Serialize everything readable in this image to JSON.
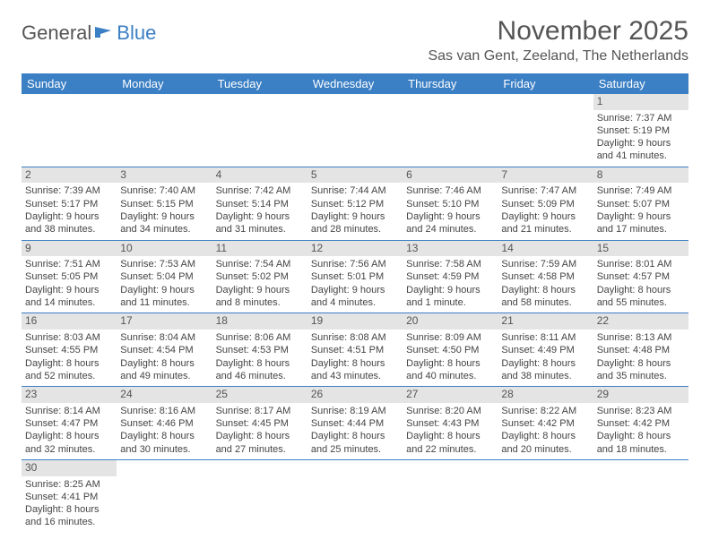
{
  "logo": {
    "text1": "General",
    "text2": "Blue"
  },
  "title": "November 2025",
  "location": "Sas van Gent, Zeeland, The Netherlands",
  "day_headers": [
    "Sunday",
    "Monday",
    "Tuesday",
    "Wednesday",
    "Thursday",
    "Friday",
    "Saturday"
  ],
  "colors": {
    "header_bg": "#3b7fc4",
    "header_text": "#ffffff",
    "date_bar_bg": "#e4e4e4",
    "text": "#444444",
    "row_border": "#3b7fc4"
  },
  "fonts": {
    "title_size_pt": 22,
    "location_size_pt": 12,
    "day_header_size_pt": 10,
    "cell_size_pt": 8
  },
  "weeks": [
    [
      {
        "date": "",
        "lines": []
      },
      {
        "date": "",
        "lines": []
      },
      {
        "date": "",
        "lines": []
      },
      {
        "date": "",
        "lines": []
      },
      {
        "date": "",
        "lines": []
      },
      {
        "date": "",
        "lines": []
      },
      {
        "date": "1",
        "lines": [
          "Sunrise: 7:37 AM",
          "Sunset: 5:19 PM",
          "Daylight: 9 hours",
          "and 41 minutes."
        ]
      }
    ],
    [
      {
        "date": "2",
        "lines": [
          "Sunrise: 7:39 AM",
          "Sunset: 5:17 PM",
          "Daylight: 9 hours",
          "and 38 minutes."
        ]
      },
      {
        "date": "3",
        "lines": [
          "Sunrise: 7:40 AM",
          "Sunset: 5:15 PM",
          "Daylight: 9 hours",
          "and 34 minutes."
        ]
      },
      {
        "date": "4",
        "lines": [
          "Sunrise: 7:42 AM",
          "Sunset: 5:14 PM",
          "Daylight: 9 hours",
          "and 31 minutes."
        ]
      },
      {
        "date": "5",
        "lines": [
          "Sunrise: 7:44 AM",
          "Sunset: 5:12 PM",
          "Daylight: 9 hours",
          "and 28 minutes."
        ]
      },
      {
        "date": "6",
        "lines": [
          "Sunrise: 7:46 AM",
          "Sunset: 5:10 PM",
          "Daylight: 9 hours",
          "and 24 minutes."
        ]
      },
      {
        "date": "7",
        "lines": [
          "Sunrise: 7:47 AM",
          "Sunset: 5:09 PM",
          "Daylight: 9 hours",
          "and 21 minutes."
        ]
      },
      {
        "date": "8",
        "lines": [
          "Sunrise: 7:49 AM",
          "Sunset: 5:07 PM",
          "Daylight: 9 hours",
          "and 17 minutes."
        ]
      }
    ],
    [
      {
        "date": "9",
        "lines": [
          "Sunrise: 7:51 AM",
          "Sunset: 5:05 PM",
          "Daylight: 9 hours",
          "and 14 minutes."
        ]
      },
      {
        "date": "10",
        "lines": [
          "Sunrise: 7:53 AM",
          "Sunset: 5:04 PM",
          "Daylight: 9 hours",
          "and 11 minutes."
        ]
      },
      {
        "date": "11",
        "lines": [
          "Sunrise: 7:54 AM",
          "Sunset: 5:02 PM",
          "Daylight: 9 hours",
          "and 8 minutes."
        ]
      },
      {
        "date": "12",
        "lines": [
          "Sunrise: 7:56 AM",
          "Sunset: 5:01 PM",
          "Daylight: 9 hours",
          "and 4 minutes."
        ]
      },
      {
        "date": "13",
        "lines": [
          "Sunrise: 7:58 AM",
          "Sunset: 4:59 PM",
          "Daylight: 9 hours",
          "and 1 minute."
        ]
      },
      {
        "date": "14",
        "lines": [
          "Sunrise: 7:59 AM",
          "Sunset: 4:58 PM",
          "Daylight: 8 hours",
          "and 58 minutes."
        ]
      },
      {
        "date": "15",
        "lines": [
          "Sunrise: 8:01 AM",
          "Sunset: 4:57 PM",
          "Daylight: 8 hours",
          "and 55 minutes."
        ]
      }
    ],
    [
      {
        "date": "16",
        "lines": [
          "Sunrise: 8:03 AM",
          "Sunset: 4:55 PM",
          "Daylight: 8 hours",
          "and 52 minutes."
        ]
      },
      {
        "date": "17",
        "lines": [
          "Sunrise: 8:04 AM",
          "Sunset: 4:54 PM",
          "Daylight: 8 hours",
          "and 49 minutes."
        ]
      },
      {
        "date": "18",
        "lines": [
          "Sunrise: 8:06 AM",
          "Sunset: 4:53 PM",
          "Daylight: 8 hours",
          "and 46 minutes."
        ]
      },
      {
        "date": "19",
        "lines": [
          "Sunrise: 8:08 AM",
          "Sunset: 4:51 PM",
          "Daylight: 8 hours",
          "and 43 minutes."
        ]
      },
      {
        "date": "20",
        "lines": [
          "Sunrise: 8:09 AM",
          "Sunset: 4:50 PM",
          "Daylight: 8 hours",
          "and 40 minutes."
        ]
      },
      {
        "date": "21",
        "lines": [
          "Sunrise: 8:11 AM",
          "Sunset: 4:49 PM",
          "Daylight: 8 hours",
          "and 38 minutes."
        ]
      },
      {
        "date": "22",
        "lines": [
          "Sunrise: 8:13 AM",
          "Sunset: 4:48 PM",
          "Daylight: 8 hours",
          "and 35 minutes."
        ]
      }
    ],
    [
      {
        "date": "23",
        "lines": [
          "Sunrise: 8:14 AM",
          "Sunset: 4:47 PM",
          "Daylight: 8 hours",
          "and 32 minutes."
        ]
      },
      {
        "date": "24",
        "lines": [
          "Sunrise: 8:16 AM",
          "Sunset: 4:46 PM",
          "Daylight: 8 hours",
          "and 30 minutes."
        ]
      },
      {
        "date": "25",
        "lines": [
          "Sunrise: 8:17 AM",
          "Sunset: 4:45 PM",
          "Daylight: 8 hours",
          "and 27 minutes."
        ]
      },
      {
        "date": "26",
        "lines": [
          "Sunrise: 8:19 AM",
          "Sunset: 4:44 PM",
          "Daylight: 8 hours",
          "and 25 minutes."
        ]
      },
      {
        "date": "27",
        "lines": [
          "Sunrise: 8:20 AM",
          "Sunset: 4:43 PM",
          "Daylight: 8 hours",
          "and 22 minutes."
        ]
      },
      {
        "date": "28",
        "lines": [
          "Sunrise: 8:22 AM",
          "Sunset: 4:42 PM",
          "Daylight: 8 hours",
          "and 20 minutes."
        ]
      },
      {
        "date": "29",
        "lines": [
          "Sunrise: 8:23 AM",
          "Sunset: 4:42 PM",
          "Daylight: 8 hours",
          "and 18 minutes."
        ]
      }
    ],
    [
      {
        "date": "30",
        "lines": [
          "Sunrise: 8:25 AM",
          "Sunset: 4:41 PM",
          "Daylight: 8 hours",
          "and 16 minutes."
        ]
      },
      {
        "date": "",
        "lines": []
      },
      {
        "date": "",
        "lines": []
      },
      {
        "date": "",
        "lines": []
      },
      {
        "date": "",
        "lines": []
      },
      {
        "date": "",
        "lines": []
      },
      {
        "date": "",
        "lines": []
      }
    ]
  ]
}
